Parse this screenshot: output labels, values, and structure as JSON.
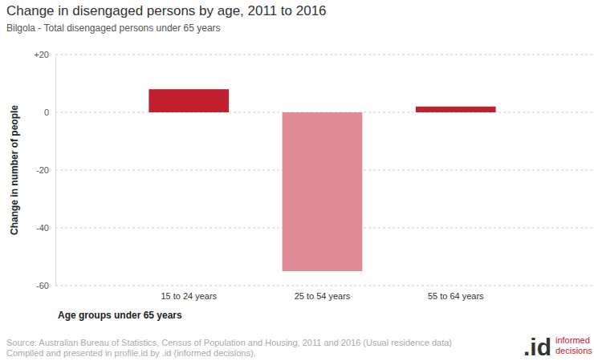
{
  "chart_data": {
    "type": "bar",
    "title": "Change in disengaged persons by age, 2011 to 2016",
    "subtitle": "Bilgola - Total disengaged persons under 65 years",
    "x_label": "Age groups under 65 years",
    "y_label": "Change in number of people",
    "categories": [
      "15 to 24 years",
      "25 to 54 years",
      "55 to 64 years"
    ],
    "values": [
      8,
      -55,
      2
    ],
    "colors": [
      "#c1202e",
      "#e08a97",
      "#c1202e"
    ],
    "ylim": [
      -60,
      20
    ],
    "yticks": [
      -60,
      -40,
      -20,
      0,
      {
        "value": 20,
        "label": "+20"
      }
    ],
    "grid": true,
    "source": [
      "Source: Australian Bureau of Statistics, Census of Population and Housing, 2011 and 2016 (Usual residence data)",
      "Compiled and presented in profile.id by .id (informed decisions)."
    ],
    "logo": {
      "mark": ".id",
      "text": [
        "informed",
        "decisions"
      ]
    }
  }
}
